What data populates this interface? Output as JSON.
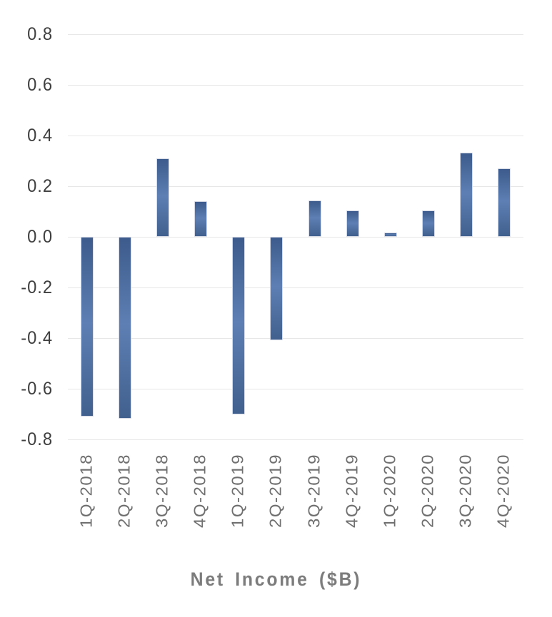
{
  "chart_data": {
    "type": "bar",
    "title": "Net Income ($B)",
    "title_position": "bottom",
    "series_name": "Net Income",
    "categories": [
      "1Q-2018",
      "2Q-2018",
      "3Q-2018",
      "4Q-2018",
      "1Q-2019",
      "2Q-2019",
      "3Q-2019",
      "4Q-2019",
      "1Q-2020",
      "2Q-2020",
      "3Q-2020",
      "4Q-2020"
    ],
    "values": [
      -0.71,
      -0.718,
      0.311,
      0.14,
      -0.702,
      -0.408,
      0.143,
      0.105,
      0.016,
      0.104,
      0.331,
      0.27
    ],
    "ylim": [
      -0.8,
      0.8
    ],
    "ytick_step": 0.2,
    "yticks": [
      "0.8",
      "0.6",
      "0.4",
      "0.2",
      "0.0",
      "-0.2",
      "-0.4",
      "-0.6",
      "-0.8"
    ],
    "grid": "horizontal-only",
    "legend": "none",
    "xlabel": "",
    "ylabel": "",
    "colors": {
      "bar_gradient_top": "#3d5b8c",
      "bar_gradient_mid": "#5d7fb3",
      "bar_gradient_bottom": "#41608e",
      "bar_border": "#d5d9e5",
      "gridline": "#e7e7e7",
      "ytick_text": "#3f3f3f",
      "xtick_text": "#6f6f6f",
      "title_text": "#7c7c7c",
      "background": "#ffffff"
    }
  }
}
